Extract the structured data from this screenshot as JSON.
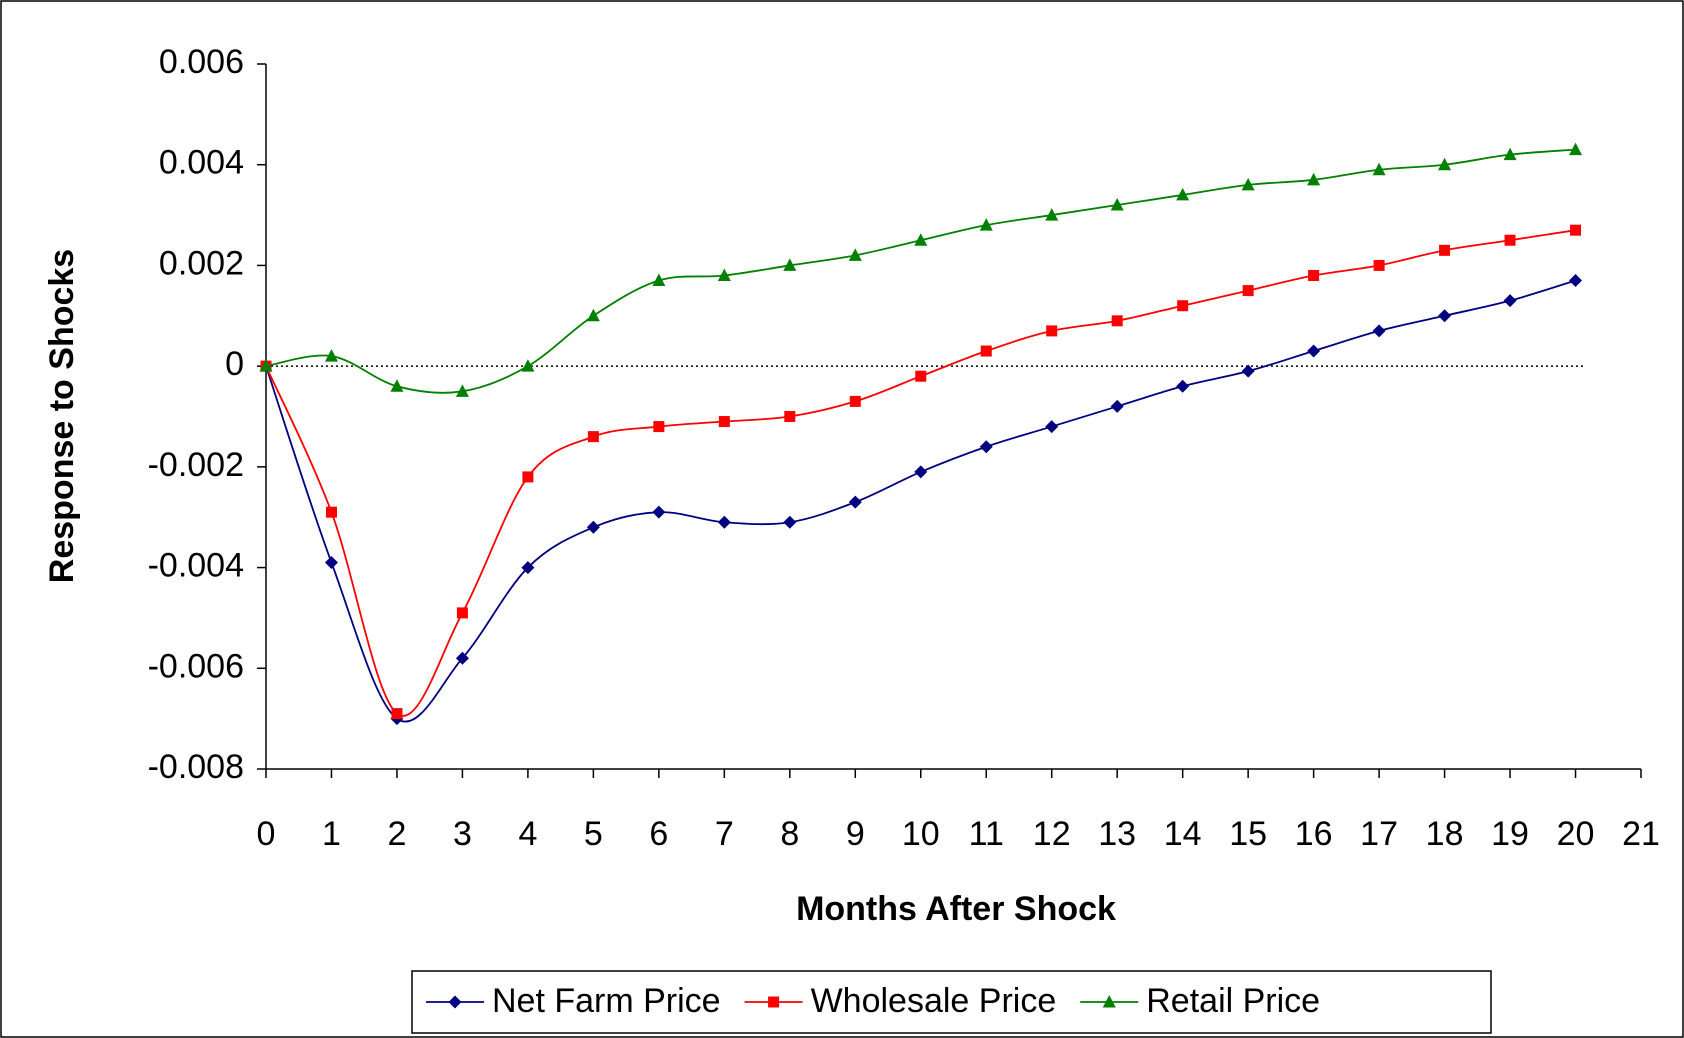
{
  "chart_data": {
    "type": "line",
    "x_label": "Months After Shock",
    "y_label": "Response to Shocks",
    "x": [
      0,
      1,
      2,
      3,
      4,
      5,
      6,
      7,
      8,
      9,
      10,
      11,
      12,
      13,
      14,
      15,
      16,
      17,
      18,
      19,
      20
    ],
    "series": [
      {
        "name": "Net Farm Price",
        "color": "#000080",
        "marker": "diamond",
        "values": [
          0,
          -0.0039,
          -0.007,
          -0.0058,
          -0.004,
          -0.0032,
          -0.0029,
          -0.0031,
          -0.0031,
          -0.0027,
          -0.0021,
          -0.0016,
          -0.0012,
          -0.0008,
          -0.0004,
          -0.0001,
          0.0003,
          0.0007,
          0.001,
          0.0013,
          0.0017
        ]
      },
      {
        "name": "Wholesale Price",
        "color": "#ff0000",
        "marker": "square",
        "values": [
          0,
          -0.0029,
          -0.0069,
          -0.0049,
          -0.0022,
          -0.0014,
          -0.0012,
          -0.0011,
          -0.001,
          -0.0007,
          -0.0002,
          0.0003,
          0.0007,
          0.0009,
          0.0012,
          0.0015,
          0.0018,
          0.002,
          0.0023,
          0.0025,
          0.0027
        ]
      },
      {
        "name": "Retail Price",
        "color": "#008000",
        "marker": "triangle",
        "values": [
          0,
          0.0002,
          -0.0004,
          -0.0005,
          0,
          0.001,
          0.0017,
          0.0018,
          0.002,
          0.0022,
          0.0025,
          0.0028,
          0.003,
          0.0032,
          0.0034,
          0.0036,
          0.0037,
          0.0039,
          0.004,
          0.0042,
          0.0043
        ]
      }
    ],
    "xlim": [
      0,
      21
    ],
    "xticks": [
      0,
      1,
      2,
      3,
      4,
      5,
      6,
      7,
      8,
      9,
      10,
      11,
      12,
      13,
      14,
      15,
      16,
      17,
      18,
      19,
      20,
      21
    ],
    "ylim": [
      -0.008,
      0.006
    ],
    "yticks": [
      -0.008,
      -0.006,
      -0.004,
      -0.002,
      0,
      0.002,
      0.004,
      0.006
    ],
    "legend": "bottom",
    "smooth": true
  }
}
